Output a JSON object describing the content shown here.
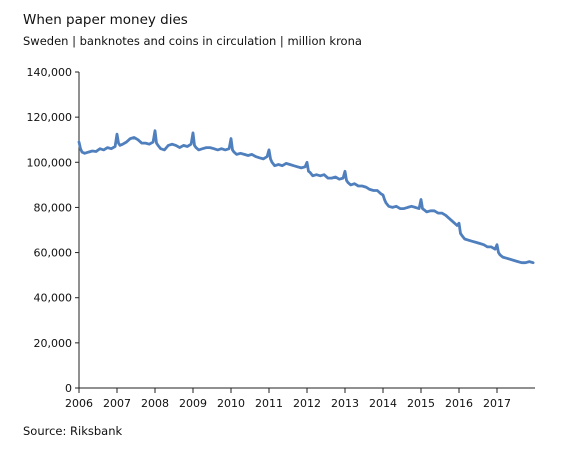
{
  "chart_data": {
    "type": "line",
    "title": "When paper money dies",
    "subtitle": "Sweden | banknotes and coins in circulation | million krona",
    "source": "Source: Riksbank",
    "xlim": [
      2006,
      2018
    ],
    "ylim": [
      0,
      140000
    ],
    "xlabel": "",
    "ylabel": "",
    "x_ticks": [
      2006,
      2007,
      2008,
      2009,
      2010,
      2011,
      2012,
      2013,
      2014,
      2015,
      2016,
      2017
    ],
    "x_tick_labels": [
      "2006",
      "2007",
      "2008",
      "2009",
      "2010",
      "2011",
      "2012",
      "2013",
      "2014",
      "2015",
      "2016",
      "2017"
    ],
    "y_ticks": [
      0,
      20000,
      40000,
      60000,
      80000,
      100000,
      120000,
      140000
    ],
    "y_tick_labels": [
      "0",
      "20,000",
      "40,000",
      "60,000",
      "80,000",
      "100,000",
      "120,000",
      "140,000"
    ],
    "grid": false,
    "color": "#4f7fbd",
    "series": [
      {
        "x": [
          2006.0,
          2006.04,
          2006.08,
          2006.15,
          2006.25,
          2006.35,
          2006.45,
          2006.55,
          2006.65,
          2006.75,
          2006.85,
          2006.95,
          2007.0,
          2007.04,
          2007.08,
          2007.15,
          2007.25,
          2007.35,
          2007.45,
          2007.55,
          2007.65,
          2007.75,
          2007.85,
          2007.95,
          2008.0,
          2008.04,
          2008.08,
          2008.15,
          2008.25,
          2008.35,
          2008.45,
          2008.55,
          2008.65,
          2008.75,
          2008.85,
          2008.95,
          2009.0,
          2009.04,
          2009.08,
          2009.15,
          2009.25,
          2009.35,
          2009.45,
          2009.55,
          2009.65,
          2009.75,
          2009.85,
          2009.95,
          2010.0,
          2010.04,
          2010.08,
          2010.15,
          2010.25,
          2010.35,
          2010.45,
          2010.55,
          2010.65,
          2010.75,
          2010.85,
          2010.95,
          2011.0,
          2011.04,
          2011.08,
          2011.15,
          2011.25,
          2011.35,
          2011.45,
          2011.55,
          2011.65,
          2011.75,
          2011.85,
          2011.95,
          2012.0,
          2012.04,
          2012.08,
          2012.15,
          2012.25,
          2012.35,
          2012.45,
          2012.55,
          2012.65,
          2012.75,
          2012.85,
          2012.95,
          2013.0,
          2013.04,
          2013.08,
          2013.15,
          2013.25,
          2013.35,
          2013.45,
          2013.55,
          2013.65,
          2013.75,
          2013.85,
          2013.95,
          2014.0,
          2014.04,
          2014.08,
          2014.15,
          2014.25,
          2014.35,
          2014.45,
          2014.55,
          2014.65,
          2014.75,
          2014.85,
          2014.95,
          2015.0,
          2015.04,
          2015.08,
          2015.15,
          2015.25,
          2015.35,
          2015.45,
          2015.55,
          2015.65,
          2015.75,
          2015.85,
          2015.95,
          2016.0,
          2016.04,
          2016.08,
          2016.15,
          2016.25,
          2016.35,
          2016.45,
          2016.55,
          2016.65,
          2016.75,
          2016.85,
          2016.95,
          2017.0,
          2017.04,
          2017.08,
          2017.15,
          2017.25,
          2017.35,
          2017.45,
          2017.55,
          2017.65,
          2017.75,
          2017.85,
          2017.95
        ],
        "values": [
          109000,
          106000,
          104500,
          104000,
          104500,
          105000,
          104800,
          106000,
          105500,
          106500,
          106000,
          107000,
          112500,
          108500,
          107500,
          108000,
          109000,
          110500,
          111000,
          110000,
          108500,
          108500,
          108000,
          109000,
          114000,
          108500,
          107500,
          106000,
          105500,
          107500,
          108000,
          107500,
          106500,
          107500,
          107000,
          108000,
          113000,
          107500,
          106500,
          105500,
          106000,
          106500,
          106500,
          106000,
          105500,
          106000,
          105500,
          106000,
          110500,
          105500,
          104500,
          103500,
          104000,
          103500,
          103000,
          103500,
          102500,
          102000,
          101500,
          102500,
          105500,
          101500,
          100000,
          98500,
          99000,
          98500,
          99500,
          99000,
          98500,
          98000,
          97500,
          98000,
          100000,
          96000,
          95500,
          94000,
          94500,
          94000,
          94500,
          93000,
          93000,
          93500,
          92500,
          93000,
          96000,
          92000,
          91000,
          90000,
          90500,
          89500,
          89500,
          89000,
          88000,
          87500,
          87500,
          86000,
          85500,
          83500,
          82000,
          80500,
          80000,
          80500,
          79500,
          79500,
          80000,
          80500,
          80000,
          79500,
          83500,
          79500,
          79000,
          78000,
          78500,
          78500,
          77500,
          77500,
          76500,
          75000,
          73500,
          72000,
          73000,
          68500,
          67500,
          66000,
          65500,
          65000,
          64500,
          64000,
          63500,
          62500,
          62500,
          61500,
          63500,
          60000,
          59000,
          58000,
          57500,
          57000,
          56500,
          56000,
          55500,
          55500,
          56000,
          55500
        ]
      }
    ]
  }
}
